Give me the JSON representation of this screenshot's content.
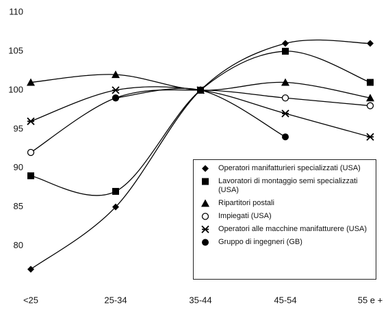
{
  "chart_data": {
    "type": "line",
    "categories": [
      "<25",
      "25-34",
      "35-44",
      "45-54",
      "55 e +"
    ],
    "ylim": [
      74,
      110
    ],
    "yticks": [
      80,
      85,
      90,
      95,
      100,
      105,
      110
    ],
    "series": [
      {
        "name": "Operatori manifatturieri specializzati (USA)",
        "color": "#000000",
        "marker": "diamond",
        "values": [
          77,
          85,
          100,
          106,
          106
        ]
      },
      {
        "name": "Lavoratori di montaggio semi specializzati (USA)",
        "color": "#000000",
        "marker": "square",
        "values": [
          89,
          87,
          100,
          105,
          101
        ]
      },
      {
        "name": "Ripartitori postali",
        "color": "#000000",
        "marker": "triangle",
        "values": [
          101,
          102,
          100,
          101,
          99
        ]
      },
      {
        "name": "Impiegati (USA)",
        "color": "#000000",
        "marker": "open-circle",
        "values": [
          92,
          99,
          100,
          99,
          98
        ]
      },
      {
        "name": "Operatori alle macchine manifatturere (USA)",
        "color": "#000000",
        "marker": "star",
        "values": [
          96,
          100,
          100,
          97,
          94
        ]
      },
      {
        "name": "Gruppo di ingegneri (GB)",
        "color": "#000000",
        "marker": "circle",
        "values": [
          null,
          99,
          100,
          94,
          null
        ]
      }
    ]
  }
}
